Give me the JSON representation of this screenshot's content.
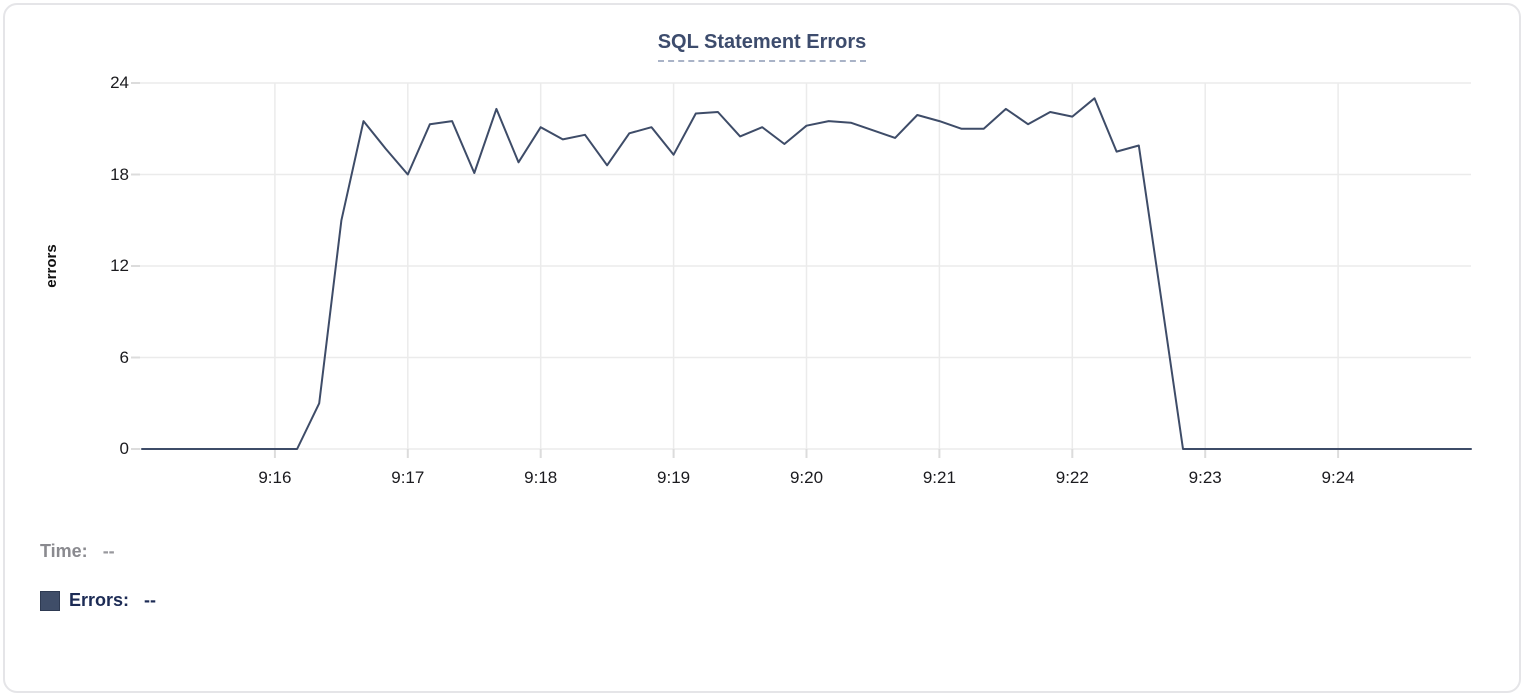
{
  "card": {
    "title": "SQL Statement Errors"
  },
  "chart_data": {
    "type": "line",
    "title": "SQL Statement Errors",
    "xlabel": "",
    "ylabel": "errors",
    "ylim": [
      0,
      24
    ],
    "y_ticks": [
      0,
      6,
      12,
      18,
      24
    ],
    "x_tick_labels": [
      "9:16",
      "9:17",
      "9:18",
      "9:19",
      "9:20",
      "9:21",
      "9:22",
      "9:23",
      "9:24"
    ],
    "grid": true,
    "legend_position": "bottom-left",
    "line_color": "#3e4c68",
    "x": [
      "9:15:00",
      "9:15:10",
      "9:15:20",
      "9:15:30",
      "9:15:40",
      "9:15:50",
      "9:16:00",
      "9:16:10",
      "9:16:20",
      "9:16:30",
      "9:16:40",
      "9:16:50",
      "9:17:00",
      "9:17:10",
      "9:17:20",
      "9:17:30",
      "9:17:40",
      "9:17:50",
      "9:18:00",
      "9:18:10",
      "9:18:20",
      "9:18:30",
      "9:18:40",
      "9:18:50",
      "9:19:00",
      "9:19:10",
      "9:19:20",
      "9:19:30",
      "9:19:40",
      "9:19:50",
      "9:20:00",
      "9:20:10",
      "9:20:20",
      "9:20:30",
      "9:20:40",
      "9:20:50",
      "9:21:00",
      "9:21:10",
      "9:21:20",
      "9:21:30",
      "9:21:40",
      "9:21:50",
      "9:22:00",
      "9:22:10",
      "9:22:20",
      "9:22:30",
      "9:22:40",
      "9:22:50",
      "9:23:00",
      "9:23:10",
      "9:23:20",
      "9:23:30",
      "9:23:40",
      "9:23:50",
      "9:24:00",
      "9:24:10",
      "9:24:20",
      "9:24:30",
      "9:24:40",
      "9:24:50",
      "9:25:00"
    ],
    "values": [
      0,
      0,
      0,
      0,
      0,
      0,
      0,
      0,
      3,
      15,
      21.5,
      19.7,
      18,
      21.3,
      21.5,
      18.1,
      22.3,
      18.8,
      21.1,
      20.3,
      20.6,
      18.6,
      20.7,
      21.1,
      19.3,
      22.0,
      22.1,
      20.5,
      21.1,
      20.0,
      21.2,
      21.5,
      21.4,
      20.9,
      20.4,
      21.9,
      21.5,
      21.0,
      21.0,
      22.3,
      21.3,
      22.1,
      21.8,
      23.0,
      19.5,
      19.9,
      10,
      0,
      0,
      0,
      0,
      0,
      0,
      0,
      0,
      0,
      0,
      0,
      0,
      0,
      0
    ]
  },
  "tooltip_legend": {
    "time_label": "Time:",
    "time_value": "--",
    "series": [
      {
        "label": "Errors:",
        "value": "--",
        "swatch_color": "#3f4d68"
      }
    ]
  },
  "colors": {
    "line": "#3e4c68",
    "title_text": "#3d4c6d",
    "grid": "#ebebeb",
    "tick_mark": "#dcdcdc",
    "card_border": "#e5e5e8",
    "time_text": "#8a8a8f",
    "errors_text": "#1c2b55"
  }
}
